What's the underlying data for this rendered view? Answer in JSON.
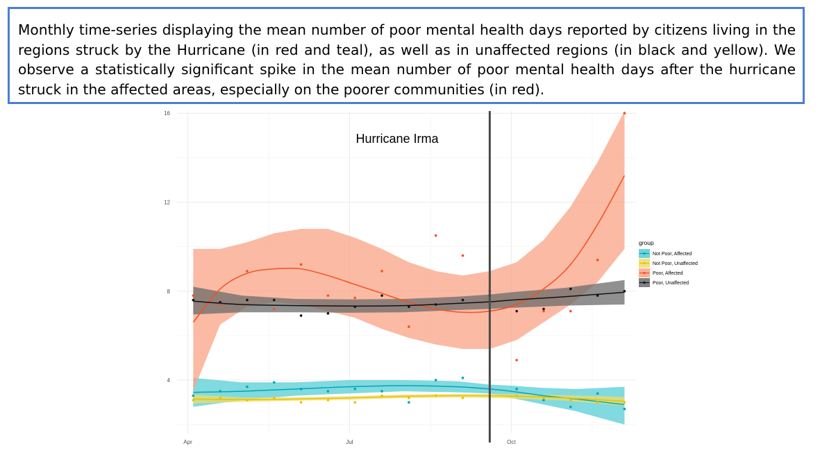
{
  "caption": "Monthly time-series displaying the mean number of poor mental health days reported by citizens living in the regions struck by the Hurricane (in red and teal), as well as in unaffected regions (in black and yellow). We observe a statistically significant spike in the mean number of poor mental health days after the hurricane struck in the affected areas, especially on the poorer communities (in red).",
  "chart_data": {
    "type": "line",
    "annotation": "Hurricane Irma",
    "event_x": 5.6,
    "xlim": [
      -0.2,
      8.3
    ],
    "ylim": [
      1.6,
      16.1
    ],
    "x_ticks": [
      {
        "value": 0,
        "label": "Apr"
      },
      {
        "value": 3,
        "label": "Jul"
      },
      {
        "value": 6,
        "label": "Oct"
      }
    ],
    "y_ticks": [
      {
        "value": 4,
        "label": "4"
      },
      {
        "value": 8,
        "label": "8"
      },
      {
        "value": 12,
        "label": "12"
      },
      {
        "value": 16,
        "label": "16"
      }
    ],
    "grid": true,
    "legend": {
      "title": "group",
      "position": "right"
    },
    "series": [
      {
        "name": "Not Poor, Affected",
        "color": "#00a6b0",
        "fill": "#55cdd6",
        "points": [
          [
            0.1,
            3.3
          ],
          [
            0.6,
            3.5
          ],
          [
            1.1,
            3.7
          ],
          [
            1.6,
            3.9
          ],
          [
            2.1,
            3.6
          ],
          [
            2.6,
            3.5
          ],
          [
            3.1,
            3.6
          ],
          [
            3.6,
            3.5
          ],
          [
            4.1,
            3.0
          ],
          [
            4.6,
            4.0
          ],
          [
            5.1,
            4.1
          ],
          [
            5.6,
            3.9
          ],
          [
            6.1,
            3.6
          ],
          [
            6.6,
            3.1
          ],
          [
            7.1,
            2.8
          ],
          [
            7.6,
            3.4
          ],
          [
            8.1,
            2.7
          ]
        ],
        "fit": [
          [
            0.1,
            3.45
          ],
          [
            1.0,
            3.5
          ],
          [
            2.0,
            3.6
          ],
          [
            3.0,
            3.7
          ],
          [
            4.0,
            3.75
          ],
          [
            5.0,
            3.7
          ],
          [
            5.6,
            3.6
          ],
          [
            6.0,
            3.5
          ],
          [
            6.6,
            3.3
          ],
          [
            7.2,
            3.15
          ],
          [
            8.1,
            2.9
          ]
        ],
        "band": [
          [
            0.1,
            2.8,
            4.1
          ],
          [
            1.0,
            3.1,
            3.9
          ],
          [
            2.0,
            3.3,
            3.9
          ],
          [
            3.0,
            3.4,
            4.0
          ],
          [
            4.0,
            3.5,
            4.0
          ],
          [
            5.0,
            3.45,
            3.95
          ],
          [
            5.6,
            3.4,
            3.8
          ],
          [
            6.0,
            3.2,
            3.75
          ],
          [
            6.6,
            2.9,
            3.65
          ],
          [
            7.2,
            2.6,
            3.6
          ],
          [
            8.1,
            2.0,
            3.7
          ]
        ]
      },
      {
        "name": "Not Poor, Unaffected",
        "color": "#e6c200",
        "fill": "#f0dc6a",
        "points": [
          [
            0.1,
            3.1
          ],
          [
            0.6,
            3.2
          ],
          [
            1.1,
            3.1
          ],
          [
            1.6,
            3.2
          ],
          [
            2.1,
            3.0
          ],
          [
            2.6,
            3.1
          ],
          [
            3.1,
            3.0
          ],
          [
            3.6,
            3.3
          ],
          [
            4.1,
            3.2
          ],
          [
            4.6,
            3.3
          ],
          [
            5.1,
            3.2
          ],
          [
            5.6,
            3.3
          ],
          [
            6.1,
            3.3
          ],
          [
            6.6,
            3.2
          ],
          [
            7.1,
            3.1
          ],
          [
            7.6,
            3.0
          ],
          [
            8.1,
            3.0
          ]
        ],
        "fit": [
          [
            0.1,
            3.15
          ],
          [
            1.0,
            3.12
          ],
          [
            2.0,
            3.15
          ],
          [
            3.0,
            3.2
          ],
          [
            4.0,
            3.27
          ],
          [
            5.0,
            3.3
          ],
          [
            6.0,
            3.28
          ],
          [
            7.0,
            3.2
          ],
          [
            8.1,
            3.05
          ]
        ],
        "band": [
          [
            0.1,
            2.95,
            3.35
          ],
          [
            1.0,
            3.02,
            3.22
          ],
          [
            2.0,
            3.07,
            3.23
          ],
          [
            3.0,
            3.12,
            3.28
          ],
          [
            4.0,
            3.19,
            3.35
          ],
          [
            5.0,
            3.22,
            3.38
          ],
          [
            6.0,
            3.18,
            3.38
          ],
          [
            7.0,
            3.08,
            3.32
          ],
          [
            8.1,
            2.85,
            3.25
          ]
        ]
      },
      {
        "name": "Poor, Affected",
        "color": "#f4511e",
        "fill": "#f9a385",
        "points": [
          [
            0.1,
            7.8
          ],
          [
            0.6,
            7.4
          ],
          [
            1.1,
            8.9
          ],
          [
            1.6,
            7.2
          ],
          [
            2.1,
            9.2
          ],
          [
            2.6,
            7.8
          ],
          [
            3.1,
            7.7
          ],
          [
            3.6,
            8.9
          ],
          [
            4.1,
            6.4
          ],
          [
            4.6,
            10.5
          ],
          [
            5.1,
            9.6
          ],
          [
            5.6,
            8.0
          ],
          [
            6.1,
            4.9
          ],
          [
            6.6,
            7.1
          ],
          [
            7.1,
            7.1
          ],
          [
            7.6,
            9.4
          ],
          [
            8.1,
            16.0
          ]
        ],
        "fit": [
          [
            0.1,
            6.6
          ],
          [
            0.6,
            8.1
          ],
          [
            1.1,
            8.8
          ],
          [
            1.6,
            9.0
          ],
          [
            2.1,
            9.0
          ],
          [
            2.6,
            8.7
          ],
          [
            3.1,
            8.3
          ],
          [
            3.6,
            7.9
          ],
          [
            4.1,
            7.5
          ],
          [
            4.6,
            7.2
          ],
          [
            5.1,
            7.05
          ],
          [
            5.6,
            7.1
          ],
          [
            6.1,
            7.4
          ],
          [
            6.6,
            8.1
          ],
          [
            7.1,
            9.2
          ],
          [
            7.6,
            11.0
          ],
          [
            8.1,
            13.2
          ]
        ],
        "band": [
          [
            0.1,
            3.5,
            9.9
          ],
          [
            0.6,
            6.5,
            9.9
          ],
          [
            1.1,
            7.3,
            10.2
          ],
          [
            1.6,
            7.5,
            10.6
          ],
          [
            2.1,
            7.4,
            10.8
          ],
          [
            2.6,
            7.1,
            10.8
          ],
          [
            3.1,
            6.8,
            10.4
          ],
          [
            3.6,
            6.3,
            9.9
          ],
          [
            4.1,
            5.9,
            9.3
          ],
          [
            4.6,
            5.6,
            8.9
          ],
          [
            5.1,
            5.4,
            8.7
          ],
          [
            5.6,
            5.4,
            8.9
          ],
          [
            6.1,
            5.8,
            9.3
          ],
          [
            6.6,
            6.6,
            10.3
          ],
          [
            7.1,
            7.4,
            11.8
          ],
          [
            7.6,
            8.4,
            13.8
          ],
          [
            8.1,
            9.9,
            16.1
          ]
        ]
      },
      {
        "name": "Poor, Unaffected",
        "color": "#111111",
        "fill": "#6b6b6b",
        "points": [
          [
            0.1,
            7.6
          ],
          [
            0.6,
            7.5
          ],
          [
            1.1,
            7.6
          ],
          [
            1.6,
            7.6
          ],
          [
            2.1,
            6.9
          ],
          [
            2.6,
            7.0
          ],
          [
            3.1,
            7.3
          ],
          [
            3.6,
            7.8
          ],
          [
            4.1,
            7.3
          ],
          [
            4.6,
            7.4
          ],
          [
            5.1,
            7.6
          ],
          [
            5.6,
            7.8
          ],
          [
            6.1,
            7.1
          ],
          [
            6.6,
            7.2
          ],
          [
            7.1,
            8.1
          ],
          [
            7.6,
            7.8
          ],
          [
            8.1,
            8.0
          ]
        ],
        "fit": [
          [
            0.1,
            7.55
          ],
          [
            1.0,
            7.4
          ],
          [
            2.0,
            7.35
          ],
          [
            3.0,
            7.33
          ],
          [
            4.0,
            7.35
          ],
          [
            5.0,
            7.45
          ],
          [
            5.6,
            7.52
          ],
          [
            6.0,
            7.6
          ],
          [
            7.0,
            7.75
          ],
          [
            8.1,
            7.95
          ]
        ],
        "band": [
          [
            0.1,
            6.95,
            8.2
          ],
          [
            1.0,
            7.05,
            7.8
          ],
          [
            2.0,
            7.05,
            7.65
          ],
          [
            3.0,
            7.03,
            7.63
          ],
          [
            4.0,
            7.05,
            7.65
          ],
          [
            5.0,
            7.15,
            7.75
          ],
          [
            5.6,
            7.2,
            7.85
          ],
          [
            6.0,
            7.25,
            7.95
          ],
          [
            7.0,
            7.35,
            8.15
          ],
          [
            8.1,
            7.4,
            8.5
          ]
        ]
      }
    ]
  }
}
